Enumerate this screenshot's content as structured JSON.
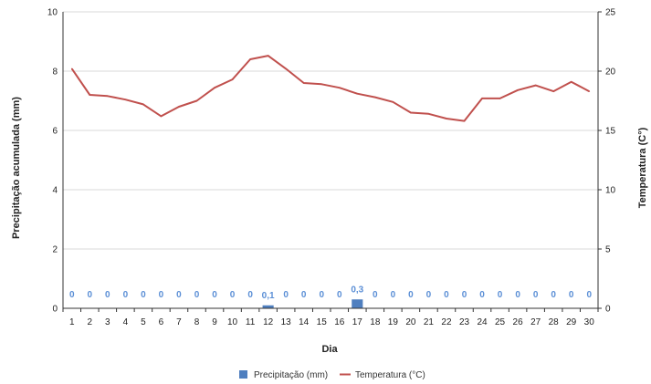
{
  "chart_data": {
    "type": "bar+line",
    "xlabel": "Dia",
    "ylabel_left": "Precipitação acumulada (mm)",
    "ylabel_right": "Temperatura (C°)",
    "ylim_left": [
      0,
      10
    ],
    "yticks_left": [
      "0",
      "2",
      "4",
      "6",
      "8",
      "10"
    ],
    "ylim_right": [
      0,
      25
    ],
    "yticks_right": [
      "0",
      "5",
      "10",
      "15",
      "20",
      "25"
    ],
    "grid": true,
    "legend_position": "bottom-center",
    "categories": [
      "1",
      "2",
      "3",
      "4",
      "5",
      "6",
      "7",
      "8",
      "9",
      "10",
      "11",
      "12",
      "13",
      "14",
      "15",
      "16",
      "17",
      "18",
      "19",
      "20",
      "21",
      "22",
      "23",
      "24",
      "25",
      "26",
      "27",
      "28",
      "29",
      "30"
    ],
    "series": [
      {
        "name": "Precipitação (mm)",
        "type": "bar",
        "axis": "left",
        "color": "#4f7fbf",
        "values": [
          0,
          0,
          0,
          0,
          0,
          0,
          0,
          0,
          0,
          0,
          0,
          0.1,
          0,
          0,
          0,
          0,
          0.3,
          0,
          0,
          0,
          0,
          0,
          0,
          0,
          0,
          0,
          0,
          0,
          0,
          0
        ],
        "labels": [
          "0",
          "0",
          "0",
          "0",
          "0",
          "0",
          "0",
          "0",
          "0",
          "0",
          "0",
          "0,1",
          "0",
          "0",
          "0",
          "0",
          "0,3",
          "0",
          "0",
          "0",
          "0",
          "0",
          "0",
          "0",
          "0",
          "0",
          "0",
          "0",
          "0",
          "0"
        ]
      },
      {
        "name": "Temperatura (°C)",
        "type": "line",
        "axis": "right",
        "color": "#c0504d",
        "values": [
          20.2,
          18.0,
          17.9,
          17.6,
          17.2,
          16.2,
          17.0,
          17.5,
          18.6,
          19.3,
          21.0,
          21.3,
          20.2,
          19.0,
          18.9,
          18.6,
          18.1,
          17.8,
          17.4,
          16.5,
          16.4,
          16.0,
          15.8,
          17.7,
          17.7,
          18.4,
          18.8,
          18.3,
          19.1,
          18.3
        ]
      }
    ]
  },
  "colors": {
    "bar": "#4f7fbf",
    "line": "#c0504d",
    "bar_label": "#5b8fd6",
    "grid": "#d9d9d9",
    "axis": "#333333"
  }
}
